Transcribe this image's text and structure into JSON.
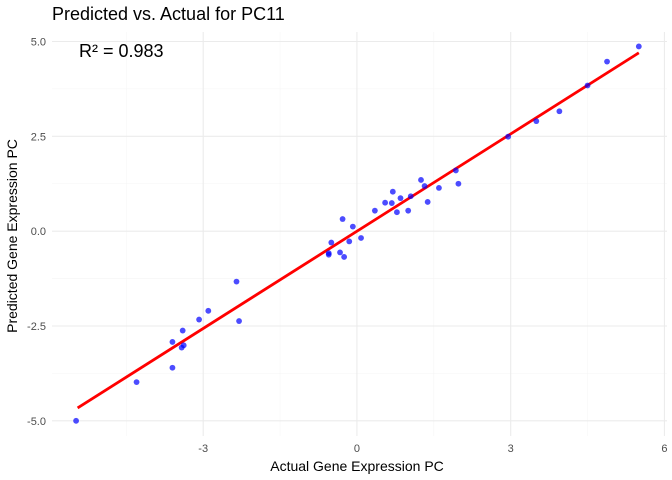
{
  "chart_data": {
    "type": "scatter",
    "title": "Predicted vs. Actual for PC11",
    "xlabel": "Actual Gene Expression PC",
    "ylabel": "Predicted Gene Expression PC",
    "annotation": "R² = 0.983",
    "xlim": [
      -5.95,
      6.05
    ],
    "ylim": [
      -5.4,
      5.25
    ],
    "x_ticks": [
      -3,
      0,
      3,
      6
    ],
    "x_tick_labels": [
      "-3",
      "0",
      "3",
      "6"
    ],
    "y_ticks": [
      -5.0,
      -2.5,
      0.0,
      2.5,
      5.0
    ],
    "y_tick_labels": [
      "-5.0",
      "-2.5",
      "0.0",
      "2.5",
      "5.0"
    ],
    "grid": true,
    "point_color": "#0000ff",
    "line_color": "#ff0000",
    "regression_line": {
      "x": [
        -5.45,
        5.5
      ],
      "y": [
        -4.66,
        4.7
      ]
    },
    "points": [
      {
        "x": -5.48,
        "y": -5.0
      },
      {
        "x": -4.3,
        "y": -3.98
      },
      {
        "x": -3.6,
        "y": -2.92
      },
      {
        "x": -3.6,
        "y": -3.6
      },
      {
        "x": -3.42,
        "y": -3.07
      },
      {
        "x": -3.4,
        "y": -2.62
      },
      {
        "x": -3.38,
        "y": -3.01
      },
      {
        "x": -3.08,
        "y": -2.33
      },
      {
        "x": -2.9,
        "y": -2.1
      },
      {
        "x": -2.35,
        "y": -1.33
      },
      {
        "x": -2.3,
        "y": -2.37
      },
      {
        "x": -0.55,
        "y": -0.58
      },
      {
        "x": -0.55,
        "y": -0.62
      },
      {
        "x": -0.5,
        "y": -0.3
      },
      {
        "x": -0.33,
        "y": -0.56
      },
      {
        "x": -0.28,
        "y": 0.32
      },
      {
        "x": -0.25,
        "y": -0.68
      },
      {
        "x": -0.15,
        "y": -0.27
      },
      {
        "x": -0.08,
        "y": 0.12
      },
      {
        "x": 0.08,
        "y": -0.18
      },
      {
        "x": 0.35,
        "y": 0.54
      },
      {
        "x": 0.55,
        "y": 0.75
      },
      {
        "x": 0.68,
        "y": 0.74
      },
      {
        "x": 0.7,
        "y": 1.04
      },
      {
        "x": 0.78,
        "y": 0.5
      },
      {
        "x": 0.85,
        "y": 0.87
      },
      {
        "x": 1.0,
        "y": 0.54
      },
      {
        "x": 1.05,
        "y": 0.92
      },
      {
        "x": 1.25,
        "y": 1.35
      },
      {
        "x": 1.32,
        "y": 1.19
      },
      {
        "x": 1.38,
        "y": 0.77
      },
      {
        "x": 1.6,
        "y": 1.14
      },
      {
        "x": 1.93,
        "y": 1.6
      },
      {
        "x": 1.98,
        "y": 1.25
      },
      {
        "x": 2.95,
        "y": 2.49
      },
      {
        "x": 3.5,
        "y": 2.9
      },
      {
        "x": 3.95,
        "y": 3.16
      },
      {
        "x": 4.5,
        "y": 3.84
      },
      {
        "x": 4.88,
        "y": 4.47
      },
      {
        "x": 5.5,
        "y": 4.87
      }
    ]
  }
}
